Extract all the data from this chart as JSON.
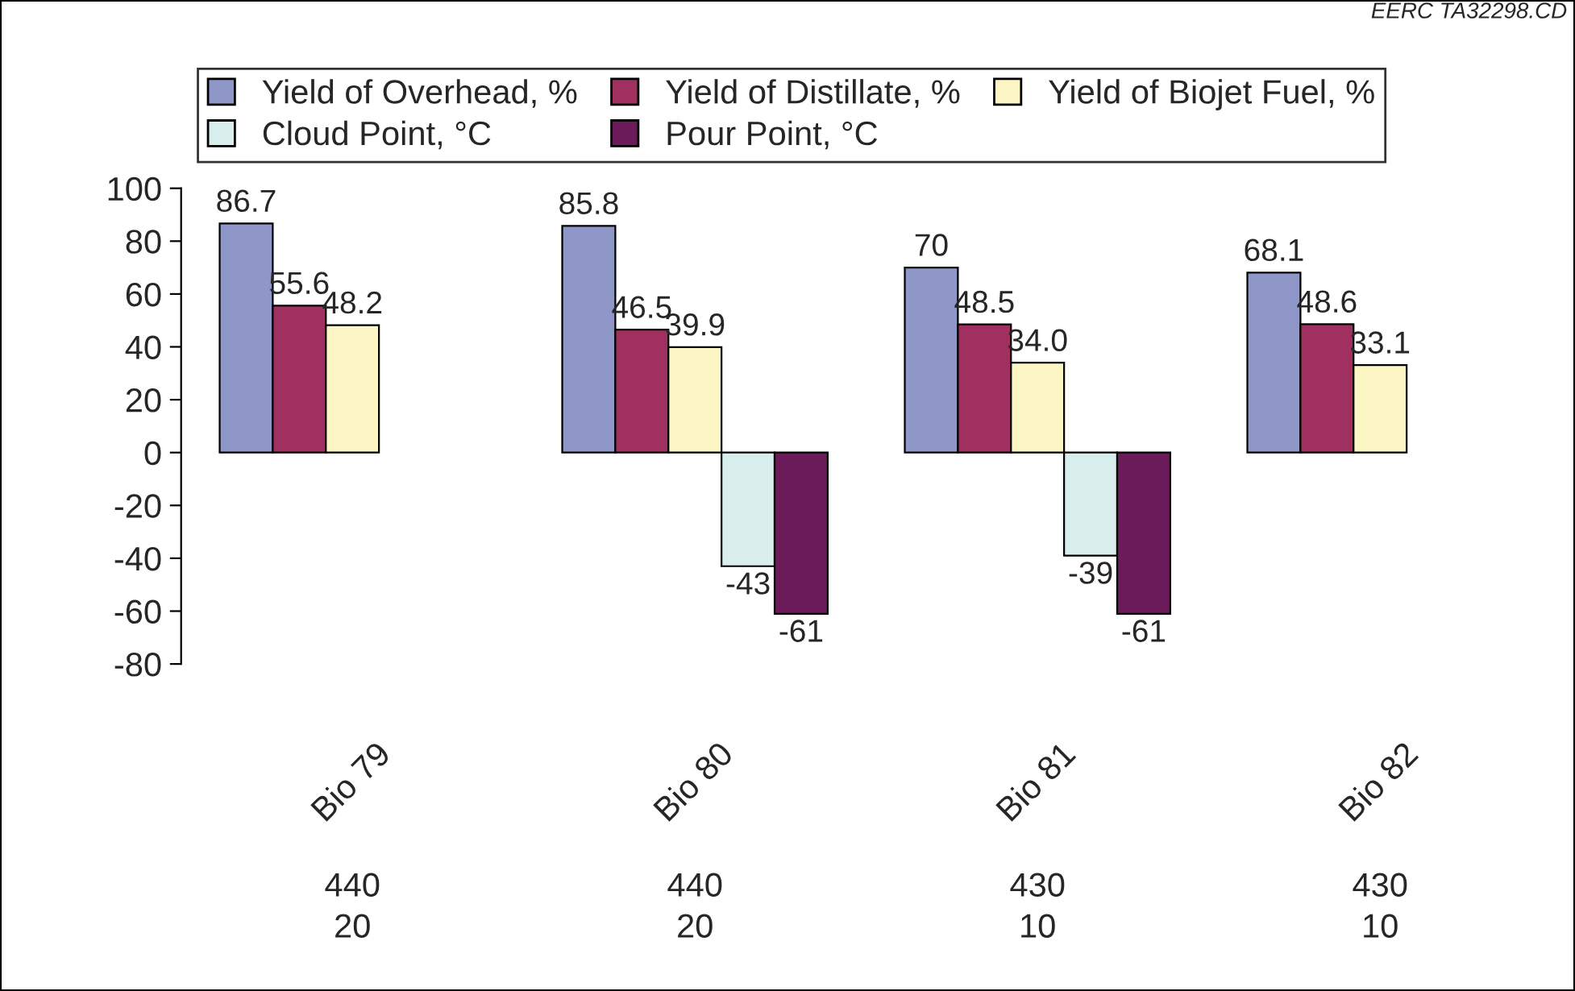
{
  "chart_data": {
    "type": "bar",
    "categories": [
      "Bio 79",
      "Bio 80",
      "Bio 81",
      "Bio 82"
    ],
    "series": [
      {
        "name": "Yield of Overhead, %",
        "color": "#8f97c8",
        "values": [
          86.7,
          85.8,
          70,
          68.1
        ],
        "value_labels": [
          "86.7",
          "85.8",
          "70",
          "68.1"
        ]
      },
      {
        "name": "Yield of Distillate, %",
        "color": "#a0305f",
        "values": [
          55.6,
          46.5,
          48.5,
          48.6
        ],
        "value_labels": [
          "55.6",
          "46.5",
          "48.5",
          "48.6"
        ]
      },
      {
        "name": "Yield of Biojet Fuel, %",
        "color": "#fbf6c4",
        "values": [
          48.2,
          39.9,
          34,
          33.1
        ],
        "value_labels": [
          "48.2",
          "39.9",
          "34.0",
          "33.1"
        ]
      },
      {
        "name": "Cloud Point, °C",
        "color": "#d8eeec",
        "values": [
          null,
          -43,
          -39,
          null
        ],
        "value_labels": [
          null,
          "-43",
          "-39",
          null
        ]
      },
      {
        "name": "Pour Point, °C",
        "color": "#6b1a5a",
        "values": [
          null,
          -61,
          -61,
          null
        ],
        "value_labels": [
          null,
          "-61",
          "-61",
          null
        ]
      }
    ],
    "ylim": [
      -80,
      100
    ],
    "yticks": [
      -80,
      -60,
      -40,
      -20,
      0,
      20,
      40,
      60,
      80,
      100
    ],
    "legend": "top",
    "grid": false,
    "annotations": [
      "EERC TA32298.CD",
      "440\n20",
      "440\n20",
      "430\n10",
      "430\n10"
    ]
  }
}
